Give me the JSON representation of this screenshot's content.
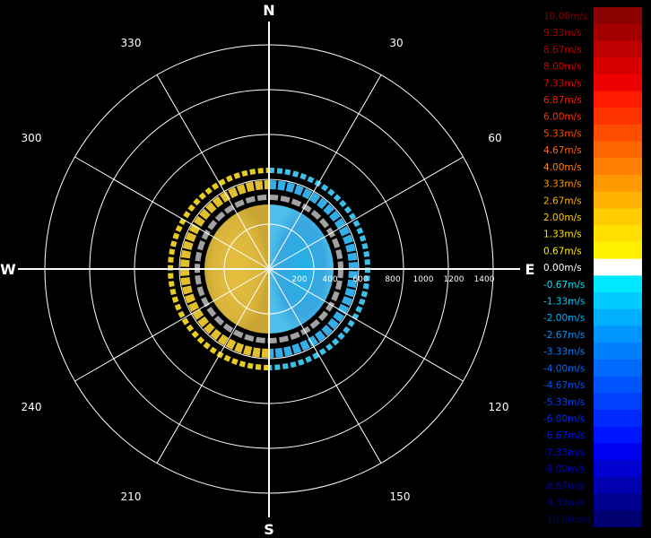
{
  "scope": {
    "cardinals": {
      "north": "N",
      "east": "E",
      "south": "S",
      "west": "W"
    },
    "azimuth_labels": [
      "30",
      "60",
      "120",
      "150",
      "210",
      "240",
      "300",
      "330"
    ],
    "range_labels": [
      "200",
      "400",
      "600",
      "800",
      "1000",
      "1200",
      "1400"
    ]
  },
  "legend": {
    "entries": [
      {
        "label": "10.00m/s",
        "color": "#8b0000"
      },
      {
        "label": "9.33m/s",
        "color": "#a40000"
      },
      {
        "label": "8.67m/s",
        "color": "#bd0000"
      },
      {
        "label": "8.00m/s",
        "color": "#d60000"
      },
      {
        "label": "7.33m/s",
        "color": "#ee0000"
      },
      {
        "label": "6.87m/s",
        "color": "#ff1a00"
      },
      {
        "label": "6.00m/s",
        "color": "#ff3300"
      },
      {
        "label": "5.33m/s",
        "color": "#ff4d00"
      },
      {
        "label": "4.67m/s",
        "color": "#ff6600"
      },
      {
        "label": "4.00m/s",
        "color": "#ff8000"
      },
      {
        "label": "3.33m/s",
        "color": "#ff9900"
      },
      {
        "label": "2.67m/s",
        "color": "#ffb300"
      },
      {
        "label": "2.00m/s",
        "color": "#ffcc00"
      },
      {
        "label": "1.33m/s",
        "color": "#ffe000"
      },
      {
        "label": "0.67m/s",
        "color": "#fff000"
      },
      {
        "label": "0.00m/s",
        "color": "#ffffff"
      },
      {
        "label": "-0.67m/s",
        "color": "#00e8ff"
      },
      {
        "label": "-1.33m/s",
        "color": "#00ccff"
      },
      {
        "label": "-2.00m/s",
        "color": "#00b0ff"
      },
      {
        "label": "-2.67m/s",
        "color": "#0095ff"
      },
      {
        "label": "-3.33m/s",
        "color": "#0080ff"
      },
      {
        "label": "-4.00m/s",
        "color": "#006aff"
      },
      {
        "label": "-4.67m/s",
        "color": "#0055ff"
      },
      {
        "label": "-5.33m/s",
        "color": "#0040ff"
      },
      {
        "label": "-6.00m/s",
        "color": "#002aff"
      },
      {
        "label": "-6.67m/s",
        "color": "#0015ff"
      },
      {
        "label": "-7.33m/s",
        "color": "#0000f0"
      },
      {
        "label": "-8.00m/s",
        "color": "#0000d0"
      },
      {
        "label": "-8.67m/s",
        "color": "#0000b0"
      },
      {
        "label": "-9.33m/s",
        "color": "#000090"
      },
      {
        "label": "-10.00m/s",
        "color": "#000070"
      }
    ]
  }
}
